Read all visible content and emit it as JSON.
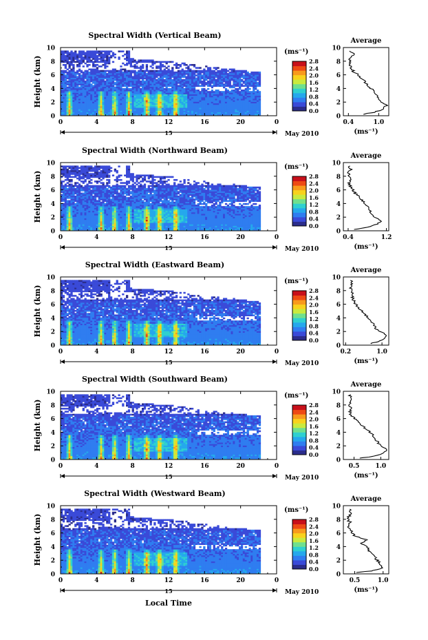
{
  "figure": {
    "xlabel": "Local Time",
    "date_suffix": "May 2010",
    "day_label": "15",
    "unit_label": "(ms⁻¹)",
    "avg_title": "Average"
  },
  "colorbar": {
    "ticks": [
      "0.0",
      "0.4",
      "0.8",
      "1.2",
      "1.6",
      "2.0",
      "2.4",
      "2.8"
    ],
    "colors": [
      "#2b2d8c",
      "#3a4ad8",
      "#2f7df0",
      "#25a8ec",
      "#2fd0d0",
      "#6fe08e",
      "#c9ea3e",
      "#f8d21c",
      "#f89a1c",
      "#ee4a14",
      "#c8101a"
    ]
  },
  "chart_data": [
    {
      "type": "heatmap",
      "title": "Spectral Width (Vertical Beam)",
      "ylabel": "Height (km)",
      "xlim": [
        0,
        24
      ],
      "ylim": [
        0,
        10
      ],
      "xticks": [
        "0",
        "4",
        "8",
        "12",
        "16",
        "20",
        "0"
      ],
      "yticks": [
        "0",
        "2",
        "4",
        "6",
        "8",
        "10"
      ],
      "colorbar_range": [
        0.0,
        2.8
      ],
      "hotspot_hours": [
        1.0,
        4.5,
        6.0,
        7.6,
        9.6,
        11.0,
        12.8
      ],
      "average_profile": {
        "xlim": [
          0.3,
          1.2
        ],
        "xticks": [
          "0.4",
          "1.0"
        ],
        "xtick_values": [
          0.4,
          1.0
        ],
        "yticks": [
          "0",
          "2",
          "4",
          "6",
          "8",
          "10"
        ],
        "xlabel": "(ms⁻¹)",
        "height_km": [
          0.2,
          0.5,
          1.0,
          1.5,
          2.0,
          2.5,
          3.0,
          3.5,
          4.0,
          4.5,
          5.0,
          5.5,
          6.0,
          6.5,
          7.0,
          7.5,
          8.0,
          8.5,
          9.0,
          9.5
        ],
        "width": [
          0.7,
          0.9,
          1.1,
          1.15,
          1.05,
          1.0,
          0.95,
          0.9,
          0.85,
          0.78,
          0.72,
          0.66,
          0.6,
          0.5,
          0.45,
          0.42,
          0.45,
          0.42,
          0.5,
          0.45
        ]
      }
    },
    {
      "type": "heatmap",
      "title": "Spectral Width (Northward Beam)",
      "ylabel": "Height (km)",
      "xlim": [
        0,
        24
      ],
      "ylim": [
        0,
        10
      ],
      "xticks": [
        "0",
        "4",
        "8",
        "12",
        "16",
        "20",
        "0"
      ],
      "yticks": [
        "0",
        "2",
        "4",
        "6",
        "8",
        "10"
      ],
      "colorbar_range": [
        0.0,
        2.8
      ],
      "hotspot_hours": [
        1.0,
        4.5,
        6.0,
        7.6,
        9.6,
        11.0,
        12.8
      ],
      "average_profile": {
        "xlim": [
          0.3,
          1.25
        ],
        "xticks": [
          "0.4",
          "1.2"
        ],
        "xtick_values": [
          0.4,
          1.2
        ],
        "yticks": [
          "0",
          "2",
          "4",
          "6",
          "8",
          "10"
        ],
        "xlabel": "(ms⁻¹)",
        "height_km": [
          0.2,
          0.5,
          1.0,
          1.5,
          2.0,
          2.5,
          3.0,
          3.5,
          4.0,
          4.5,
          5.0,
          5.5,
          6.0,
          6.5,
          7.0,
          7.5,
          8.0,
          8.5,
          9.0,
          9.5
        ],
        "width": [
          0.55,
          0.8,
          1.0,
          1.1,
          0.95,
          0.88,
          0.85,
          0.8,
          0.75,
          0.68,
          0.62,
          0.55,
          0.5,
          0.45,
          0.42,
          0.45,
          0.42,
          0.4,
          0.46,
          0.42
        ]
      }
    },
    {
      "type": "heatmap",
      "title": "Spectral Width (Eastward Beam)",
      "ylabel": "Height (km)",
      "xlim": [
        0,
        24
      ],
      "ylim": [
        0,
        10
      ],
      "xticks": [
        "0",
        "4",
        "8",
        "12",
        "16",
        "20",
        "0"
      ],
      "yticks": [
        "0",
        "2",
        "4",
        "6",
        "8",
        "10"
      ],
      "colorbar_range": [
        0.0,
        2.8
      ],
      "hotspot_hours": [
        1.0,
        4.5,
        6.0,
        7.6,
        9.6,
        11.0,
        12.8
      ],
      "average_profile": {
        "xlim": [
          0.15,
          1.15
        ],
        "xticks": [
          "0.2",
          "1.0"
        ],
        "xtick_values": [
          0.2,
          1.0
        ],
        "yticks": [
          "0",
          "2",
          "4",
          "6",
          "8",
          "10"
        ],
        "xlabel": "(ms⁻¹)",
        "height_km": [
          0.2,
          0.5,
          1.0,
          1.5,
          2.0,
          2.5,
          3.0,
          3.5,
          4.0,
          4.5,
          5.0,
          5.5,
          6.0,
          6.5,
          7.0,
          7.5,
          8.0,
          8.5,
          9.0,
          9.5
        ],
        "width": [
          0.75,
          0.9,
          1.05,
          1.1,
          0.95,
          0.85,
          0.82,
          0.75,
          0.7,
          0.62,
          0.55,
          0.48,
          0.42,
          0.38,
          0.35,
          0.37,
          0.32,
          0.3,
          0.35,
          0.32
        ]
      }
    },
    {
      "type": "heatmap",
      "title": "Spectral Width (Southward Beam)",
      "ylabel": "Height (km)",
      "xlim": [
        0,
        24
      ],
      "ylim": [
        0,
        10
      ],
      "xticks": [
        "0",
        "4",
        "8",
        "12",
        "16",
        "20",
        "0"
      ],
      "yticks": [
        "0",
        "2",
        "4",
        "6",
        "8",
        "10"
      ],
      "colorbar_range": [
        0.0,
        2.8
      ],
      "hotspot_hours": [
        1.0,
        4.5,
        6.0,
        7.6,
        9.6,
        11.0,
        12.8
      ],
      "average_profile": {
        "xlim": [
          0.3,
          1.15
        ],
        "xticks": [
          "0.5",
          "1.0"
        ],
        "xtick_values": [
          0.5,
          1.0
        ],
        "yticks": [
          "0",
          "2",
          "4",
          "6",
          "8",
          "10"
        ],
        "xlabel": "(ms⁻¹)",
        "height_km": [
          0.2,
          0.5,
          1.0,
          1.5,
          2.0,
          2.5,
          3.0,
          3.5,
          4.0,
          4.5,
          5.0,
          5.5,
          6.0,
          6.5,
          7.0,
          7.5,
          8.0,
          8.5,
          9.0,
          9.5
        ],
        "width": [
          0.6,
          0.9,
          1.05,
          1.1,
          1.0,
          0.95,
          0.9,
          0.85,
          0.8,
          0.72,
          0.65,
          0.58,
          0.5,
          0.45,
          0.42,
          0.44,
          0.4,
          0.42,
          0.46,
          0.42
        ]
      }
    },
    {
      "type": "heatmap",
      "title": "Spectral Width (Westward Beam)",
      "ylabel": "Height (km)",
      "xlim": [
        0,
        24
      ],
      "ylim": [
        0,
        10
      ],
      "xticks": [
        "0",
        "4",
        "8",
        "12",
        "16",
        "20",
        "0"
      ],
      "yticks": [
        "0",
        "2",
        "4",
        "6",
        "8",
        "10"
      ],
      "colorbar_range": [
        0.0,
        2.8
      ],
      "hotspot_hours": [
        1.0,
        4.5,
        6.0,
        7.6,
        9.6,
        11.0,
        12.8
      ],
      "average_profile": {
        "xlim": [
          0.3,
          1.1
        ],
        "xticks": [
          "0.5",
          "1.0"
        ],
        "xtick_values": [
          0.5,
          1.0
        ],
        "yticks": [
          "0",
          "2",
          "4",
          "6",
          "8",
          "10"
        ],
        "xlabel": "(ms⁻¹)",
        "height_km": [
          0.2,
          0.5,
          1.0,
          1.5,
          2.0,
          2.5,
          3.0,
          3.5,
          4.0,
          4.5,
          5.0,
          5.5,
          6.0,
          6.5,
          7.0,
          7.5,
          8.0,
          8.5,
          9.0,
          9.5
        ],
        "width": [
          0.55,
          0.85,
          1.0,
          0.95,
          0.9,
          0.85,
          0.8,
          0.75,
          0.7,
          0.6,
          0.72,
          0.5,
          0.45,
          0.42,
          0.4,
          0.42,
          0.38,
          0.4,
          0.44,
          0.4
        ]
      }
    }
  ]
}
